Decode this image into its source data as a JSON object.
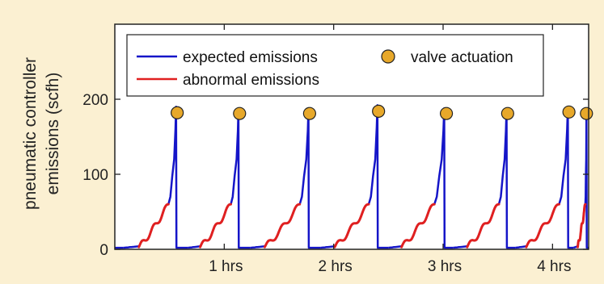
{
  "chart_data": {
    "type": "line",
    "title": "",
    "xlabel": "",
    "ylabel": "pneumatic controller emissions (scfh)",
    "ylabel_lines": [
      "pneumatic controller",
      "emissions (scfh)"
    ],
    "x_units": "hours",
    "xlim": [
      0,
      4.33
    ],
    "ylim": [
      0,
      300
    ],
    "grid": false,
    "legend_position": "top",
    "y_ticks": [
      {
        "value": 0,
        "label": "0"
      },
      {
        "value": 100,
        "label": "100"
      },
      {
        "value": 200,
        "label": "200"
      }
    ],
    "x_ticks": [
      {
        "value": 1,
        "label": "1 hrs"
      },
      {
        "value": 2,
        "label": "2 hrs"
      },
      {
        "value": 3,
        "label": "3 hrs"
      },
      {
        "value": 4,
        "label": "4 hrs"
      }
    ],
    "series": [
      {
        "name": "expected emissions",
        "color": "#1515c8",
        "style": "line"
      },
      {
        "name": "abnormal emissions",
        "color": "#e02020",
        "style": "line"
      },
      {
        "name": "valve actuation",
        "color": "#e7a82a",
        "style": "marker-circle"
      }
    ],
    "cycles": [
      {
        "rise_start": 0.08,
        "abnormal_start": 0.22,
        "abnormal_end": 0.49,
        "peak_x": 0.56,
        "peak_y": 190,
        "actuation_x": 0.57,
        "actuation_y": 182
      },
      {
        "rise_start": 0.67,
        "abnormal_start": 0.78,
        "abnormal_end": 1.06,
        "peak_x": 1.13,
        "peak_y": 188,
        "actuation_x": 1.14,
        "actuation_y": 181
      },
      {
        "rise_start": 1.24,
        "abnormal_start": 1.37,
        "abnormal_end": 1.69,
        "peak_x": 1.77,
        "peak_y": 188,
        "actuation_x": 1.78,
        "actuation_y": 181
      },
      {
        "rise_start": 1.88,
        "abnormal_start": 2.01,
        "abnormal_end": 2.32,
        "peak_x": 2.4,
        "peak_y": 192,
        "actuation_x": 2.41,
        "actuation_y": 184
      },
      {
        "rise_start": 2.5,
        "abnormal_start": 2.62,
        "abnormal_end": 2.92,
        "peak_x": 3.01,
        "peak_y": 188,
        "actuation_x": 3.03,
        "actuation_y": 181
      },
      {
        "rise_start": 3.09,
        "abnormal_start": 3.22,
        "abnormal_end": 3.51,
        "peak_x": 3.58,
        "peak_y": 188,
        "actuation_x": 3.59,
        "actuation_y": 181
      },
      {
        "rise_start": 3.66,
        "abnormal_start": 3.76,
        "abnormal_end": 4.06,
        "peak_x": 4.14,
        "peak_y": 190,
        "actuation_x": 4.15,
        "actuation_y": 183
      },
      {
        "rise_start": 4.19,
        "abnormal_start": 4.23,
        "abnormal_end": 4.3,
        "peak_x": 4.31,
        "peak_y": 188,
        "actuation_x": 4.31,
        "actuation_y": 181
      }
    ]
  }
}
